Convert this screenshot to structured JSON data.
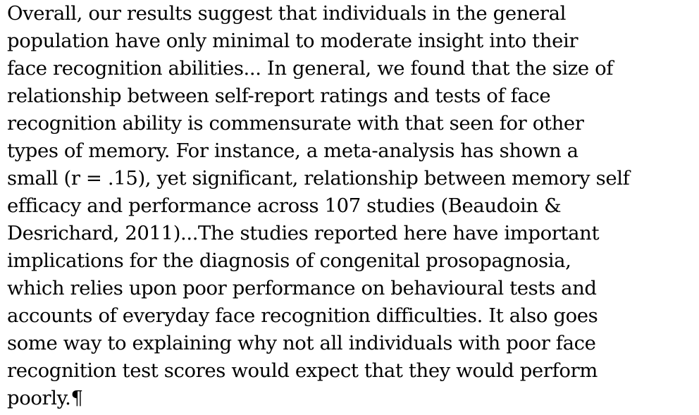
{
  "document": {
    "lines": [
      "Overall, our results suggest that individuals in the general",
      "population have only minimal to moderate insight into their",
      "face recognition abilities... In general, we found that the size of",
      "relationship between self-report ratings and tests of face",
      "recognition ability is commensurate with that seen for other",
      "types of memory. For instance, a meta-analysis has shown a",
      "small (r = .15), yet significant, relationship between memory self",
      "efficacy and performance across 107 studies (Beaudoin &",
      "Desrichard, 2011)...The studies reported here have important",
      "implications for the diagnosis of congenital prosopagnosia,",
      "which relies upon poor performance on behavioural tests and",
      "accounts of everyday face recognition difficulties. It also goes",
      "some way to explaining why not all individuals with poor face",
      "recognition test scores would expect that they would perform",
      "poorly.¶"
    ]
  }
}
